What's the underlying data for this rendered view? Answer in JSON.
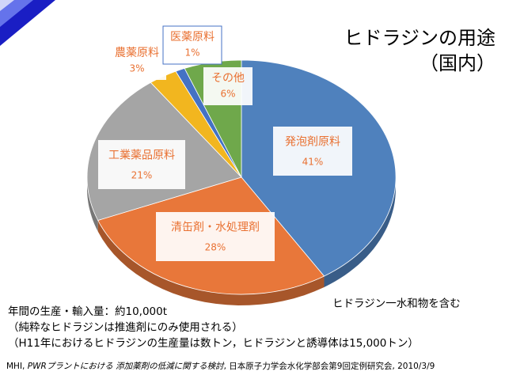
{
  "title": {
    "line1": "ヒドラジンの用途",
    "line2": "（国内）"
  },
  "note": "ヒドラジン一水和物を含む",
  "bottom_text": {
    "line1": "年間の生産・輸入量：約10,000t",
    "line2": "（純粋なヒドラジンは推進剤にのみ使用される）",
    "line3": "（H11年におけるヒドラジンの生産量は数トン，ヒドラジンと誘導体は15,000トン）"
  },
  "citation": {
    "prefix": "MHI, ",
    "italic": "PWRプラントにおける 添加薬剤の低減に関する検討",
    "suffix": ", 日本原子力学会水化学部会第9回定例研究会, 2010/3/9"
  },
  "chart_data": {
    "type": "pie",
    "title": "ヒドラジンの用途（国内）",
    "slices": [
      {
        "label": "発泡剤原料",
        "value": 41,
        "value_label": "41%",
        "color": "#4F81BD"
      },
      {
        "label": "清缶剤・水処理剤",
        "value": 28,
        "value_label": "28%",
        "color": "#E8773A"
      },
      {
        "label": "工業薬品原料",
        "value": 21,
        "value_label": "21%",
        "color": "#A5A5A5"
      },
      {
        "label": "農薬原料",
        "value": 3,
        "value_label": "3%",
        "color": "#F2B61F"
      },
      {
        "label": "医薬原料",
        "value": 1,
        "value_label": "1%",
        "color": "#4472C4"
      },
      {
        "label": "その他",
        "value": 6,
        "value_label": "6%",
        "color": "#6FA84B"
      }
    ]
  },
  "colors": {
    "deco_blue": "#1A1EC4",
    "deco_light": "#6E7CF0",
    "label_text": "#E97132"
  }
}
